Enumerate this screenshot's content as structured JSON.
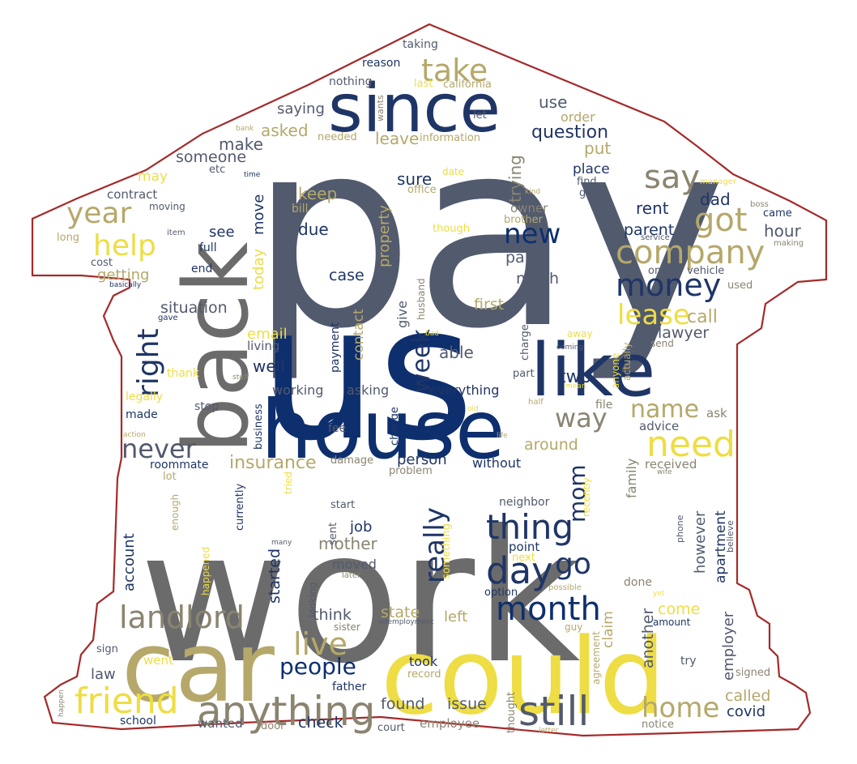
{
  "colors": {
    "background": "#ffffff",
    "outline": "#a52a2a",
    "gray": "#6b6b6b",
    "slate": "#525a6e",
    "navy": "#0e2f6e",
    "darknavy": "#1f3566",
    "khaki": "#b5a86a",
    "gold": "#eedd44",
    "taupe": "#8a8470"
  },
  "words": [
    "pay",
    "work",
    "us",
    "could",
    "car",
    "back",
    "since",
    "house",
    "like",
    "anything",
    "friend",
    "landlord",
    "still",
    "thing",
    "month",
    "money",
    "company",
    "got",
    "need",
    "day",
    "take",
    "say",
    "year",
    "help",
    "right",
    "lease",
    "new",
    "really",
    "live",
    "people",
    "home",
    "week",
    "never",
    "way",
    "name",
    "go",
    "mom",
    "insurance",
    "someone",
    "make",
    "sure",
    "keep",
    "rent",
    "dad",
    "hour",
    "question",
    "use",
    "order",
    "put",
    "place",
    "saying",
    "asked",
    "leave",
    "trying",
    "parent",
    "call",
    "lawyer",
    "property",
    "move",
    "today",
    "see",
    "due",
    "email",
    "situation",
    "contact",
    "case",
    "paid",
    "much",
    "first",
    "two",
    "able",
    "well",
    "working",
    "asking",
    "everything",
    "around",
    "person",
    "without",
    "job",
    "mother",
    "moved",
    "state",
    "left",
    "think",
    "started",
    "come",
    "another",
    "claim",
    "law",
    "took",
    "record",
    "found",
    "issue",
    "check",
    "called",
    "covid",
    "employer",
    "apartment",
    "however",
    "family",
    "received",
    "advice",
    "ask",
    "file",
    "account",
    "roommate",
    "made",
    "stop",
    "business",
    "fee",
    "change",
    "getting",
    "end",
    "full",
    "contract",
    "moving",
    "may",
    "bill",
    "office",
    "date",
    "though",
    "brother",
    "owner",
    "kind",
    "good",
    "find",
    "manager",
    "boss",
    "came",
    "making",
    "service",
    "online",
    "vehicle",
    "used",
    "send",
    "actually",
    "anyone",
    "coming",
    "away",
    "charge",
    "part",
    "payment",
    "give",
    "husband",
    "bad",
    "gave",
    "basically",
    "cost",
    "item",
    "long",
    "etc",
    "time",
    "bank",
    "needed",
    "information",
    "let",
    "wants",
    "nothing",
    "reason",
    "taking",
    "last",
    "california",
    "living",
    "thank",
    "legally",
    "stuff",
    "half",
    "mean",
    "old",
    "life",
    "action",
    "damage",
    "problem",
    "lot",
    "tried",
    "currently",
    "enough",
    "start",
    "sent",
    "neighbor",
    "point",
    "next",
    "recently",
    "something",
    "option",
    "possible",
    "done",
    "yet",
    "amount",
    "phone",
    "believe",
    "looking",
    "later",
    "unemployment",
    "sister",
    "guy",
    "try",
    "agreement",
    "signed",
    "sign",
    "went",
    "father",
    "thought",
    "school",
    "wanted",
    "door",
    "court",
    "employee",
    "notice",
    "letter",
    "wife",
    "many",
    "happened",
    "happen"
  ]
}
